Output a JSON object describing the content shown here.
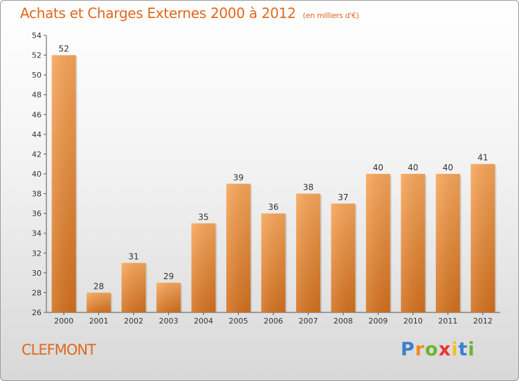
{
  "page": {
    "title": "Achats et Charges Externes 2000 à 2012",
    "subtitle": "(en milliers d'€)",
    "commune": "CLEFMONT",
    "logo": [
      "P",
      "r",
      "o",
      "x",
      "i",
      "t",
      "i"
    ],
    "logo_colors": [
      "#3a7fd0",
      "#f28a1c",
      "#6ab42d",
      "#e8352a",
      "#f2c21c",
      "#3a7fd0",
      "#6ab42d"
    ]
  },
  "chart_data": {
    "type": "bar",
    "title": "Achats et Charges Externes 2000 à 2012",
    "subtitle": "(en milliers d'€)",
    "categories": [
      "2000",
      "2001",
      "2002",
      "2003",
      "2004",
      "2005",
      "2006",
      "2007",
      "2008",
      "2009",
      "2010",
      "2011",
      "2012"
    ],
    "values": [
      52,
      28,
      31,
      29,
      35,
      39,
      36,
      38,
      37,
      40,
      40,
      40,
      41
    ],
    "ylim": [
      26,
      54
    ],
    "yticks": [
      26,
      28,
      30,
      32,
      34,
      36,
      38,
      40,
      42,
      44,
      46,
      48,
      50,
      52,
      54
    ],
    "grid": false,
    "bar_color_top": "#f7a65a",
    "bar_color_bottom": "#d2701e"
  }
}
